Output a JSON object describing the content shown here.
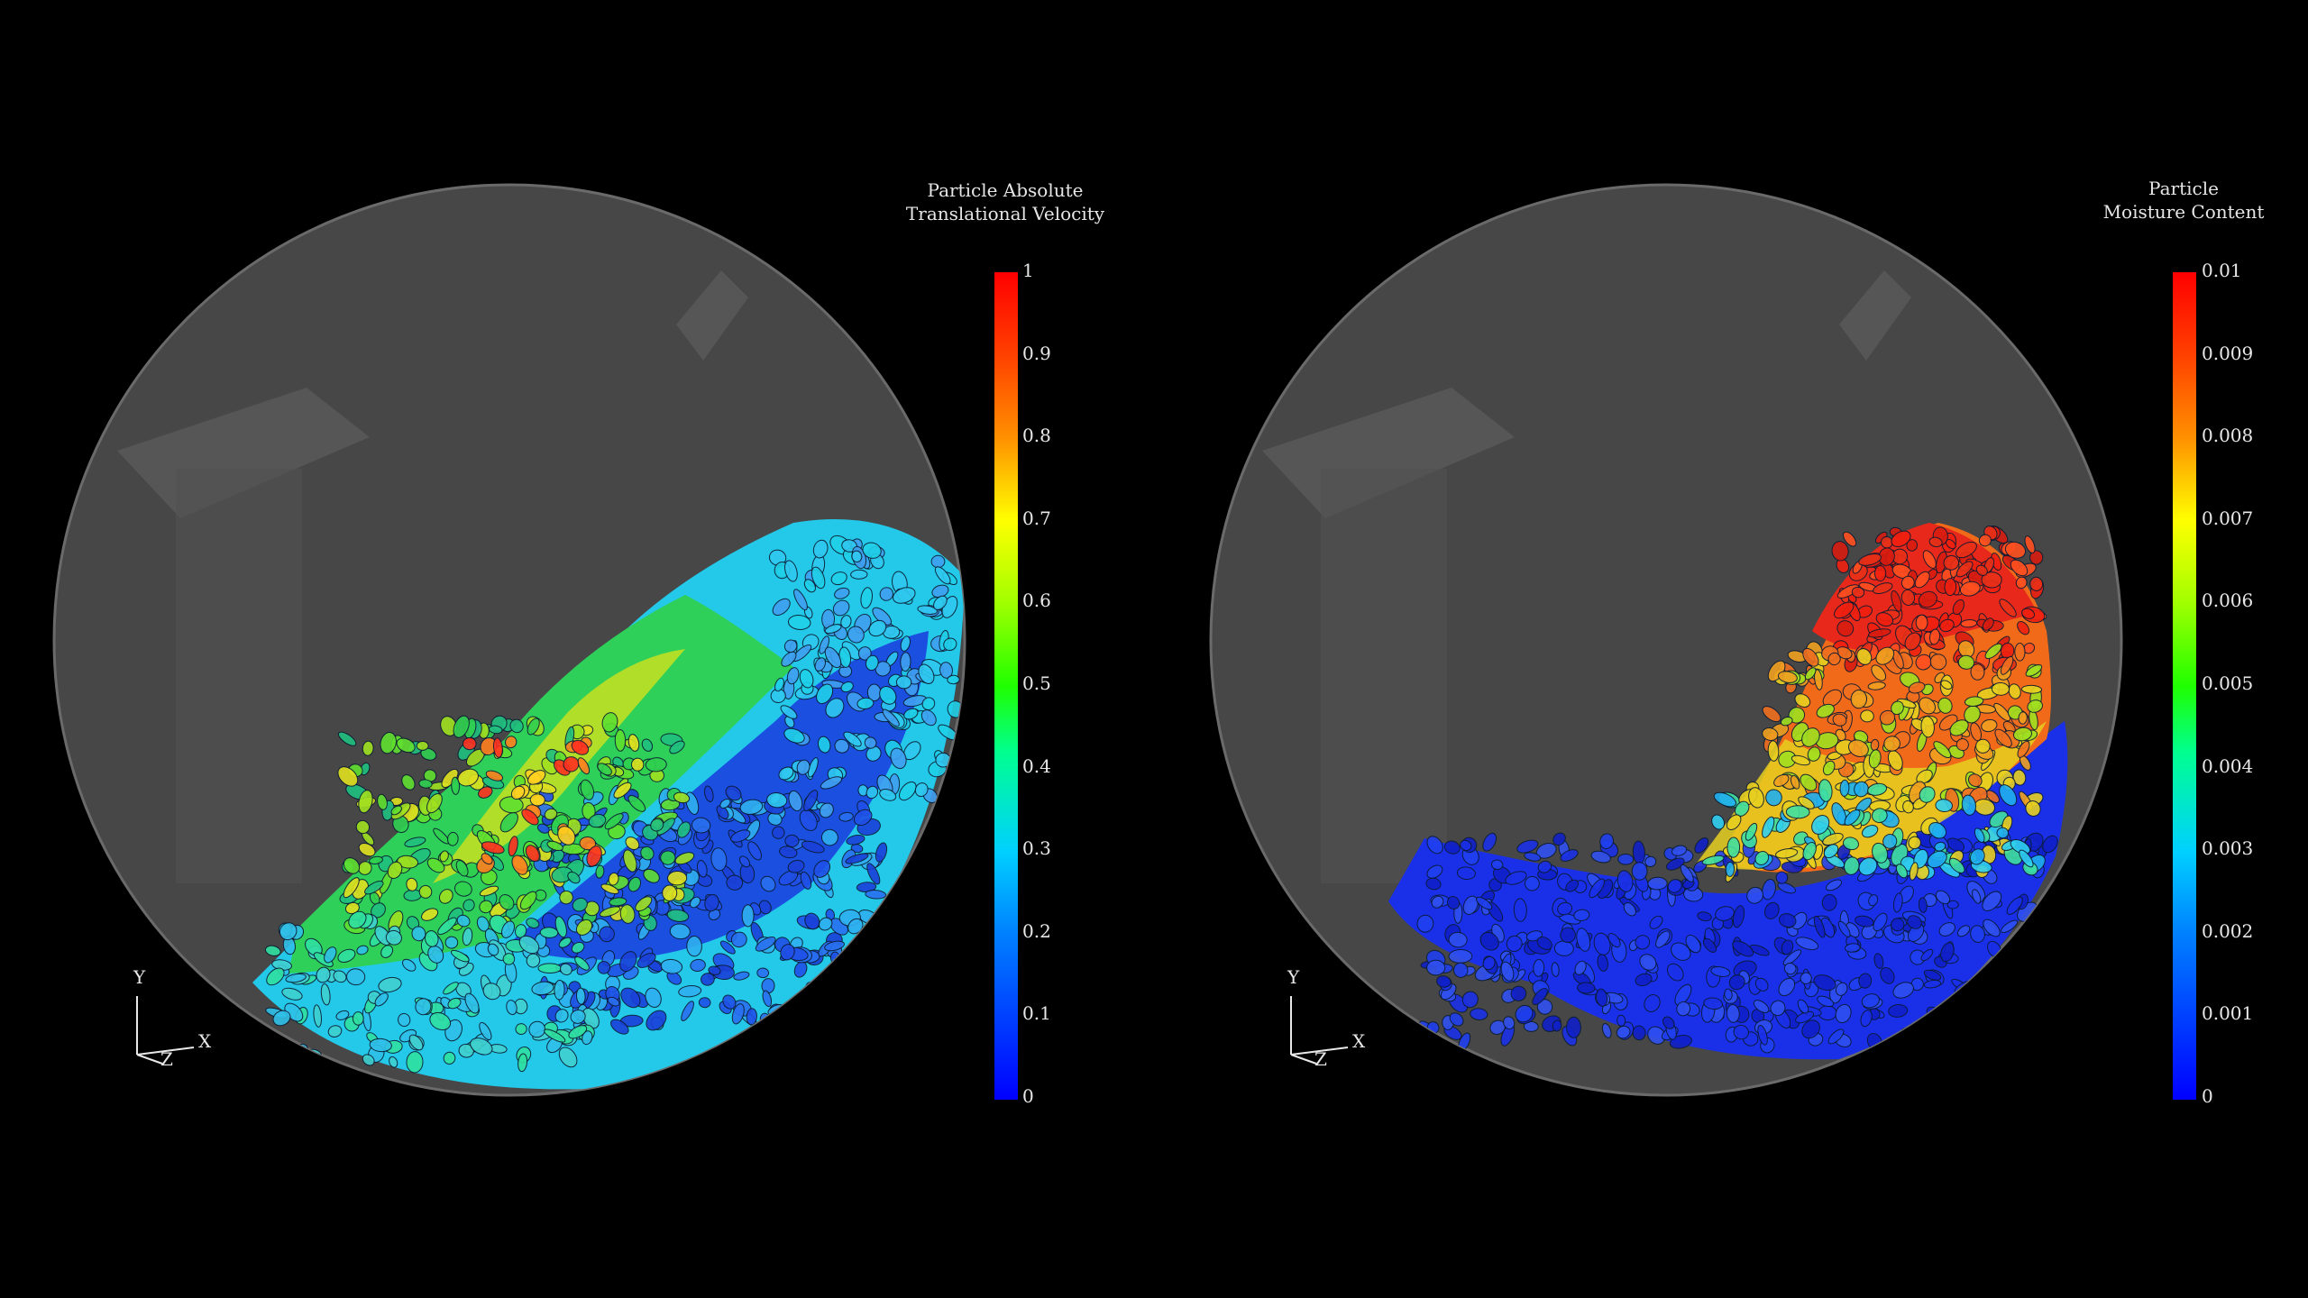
{
  "left_panel": {
    "legend_title_line1": "Particle Absolute",
    "legend_title_line2": "Translational Velocity",
    "ticks": [
      "1",
      "0.9",
      "0.8",
      "0.7",
      "0.6",
      "0.5",
      "0.4",
      "0.3",
      "0.2",
      "0.1",
      "0"
    ],
    "axes": {
      "y": "Y",
      "x": "X",
      "z": "Z"
    }
  },
  "right_panel": {
    "legend_title_line1": "Particle",
    "legend_title_line2": "Moisture Content",
    "ticks": [
      "0.01",
      "0.009",
      "0.008",
      "0.007",
      "0.006",
      "0.005",
      "0.004",
      "0.003",
      "0.002",
      "0.001",
      "0"
    ],
    "axes": {
      "y": "Y",
      "x": "X",
      "z": "Z"
    }
  },
  "colors": {
    "background": "#000000",
    "drum": "#4a4a4a",
    "low": "#0000ff",
    "mid": "#00ff00",
    "high": "#ff0000"
  }
}
